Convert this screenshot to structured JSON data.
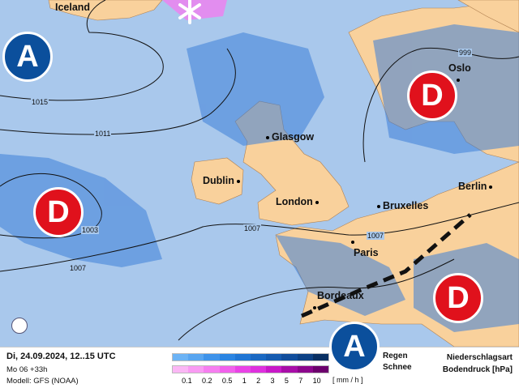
{
  "map": {
    "cities": [
      {
        "name": "Iceland",
        "dot": false
      },
      {
        "name": "Glasgow",
        "dot": true
      },
      {
        "name": "Dublin",
        "dot": true
      },
      {
        "name": "London",
        "dot": true
      },
      {
        "name": "Bruxelles",
        "dot": true
      },
      {
        "name": "Berlin",
        "dot": true
      },
      {
        "name": "Paris",
        "dot": true
      },
      {
        "name": "Bordeaux",
        "dot": true
      },
      {
        "name": "Oslo",
        "dot": true
      }
    ],
    "isobar_labels": [
      "1015",
      "1011",
      "1003",
      "1007",
      "1007",
      "1007",
      "999"
    ],
    "pressure_systems": {
      "high": "A",
      "low": "D"
    },
    "colors": {
      "sea": "#a9c8ec",
      "land": "#f9d19c",
      "rain": "#3d7fd9",
      "snow": "#f07ef0",
      "high": "#0b4f9c",
      "low": "#e0111c"
    }
  },
  "legend": {
    "datetime": "Di, 24.09.2024, 12..15 UTC",
    "run": "Mo 06 +33h",
    "model": "Modell: GFS (NOAA)",
    "rain_label": "Regen",
    "snow_label": "Schnee",
    "unit": "[ mm / h ]",
    "ticks": [
      "0.1",
      "0.2",
      "0.5",
      "1",
      "2",
      "3",
      "5",
      "7",
      "10"
    ],
    "rain_colors": [
      "#6cb3f5",
      "#58a5f0",
      "#3e93ea",
      "#2a84e2",
      "#1f75d4",
      "#1a68c2",
      "#155bb0",
      "#104d9c",
      "#0c4185",
      "#082f62"
    ],
    "snow_colors": [
      "#fbb7f5",
      "#f99bf3",
      "#f67ef0",
      "#f160ec",
      "#e942e6",
      "#de30de",
      "#c818c8",
      "#a80ea8",
      "#8c068c",
      "#6c006c"
    ],
    "title1": "Niederschlagsart",
    "title2": "Bodendruck [hPa]"
  }
}
